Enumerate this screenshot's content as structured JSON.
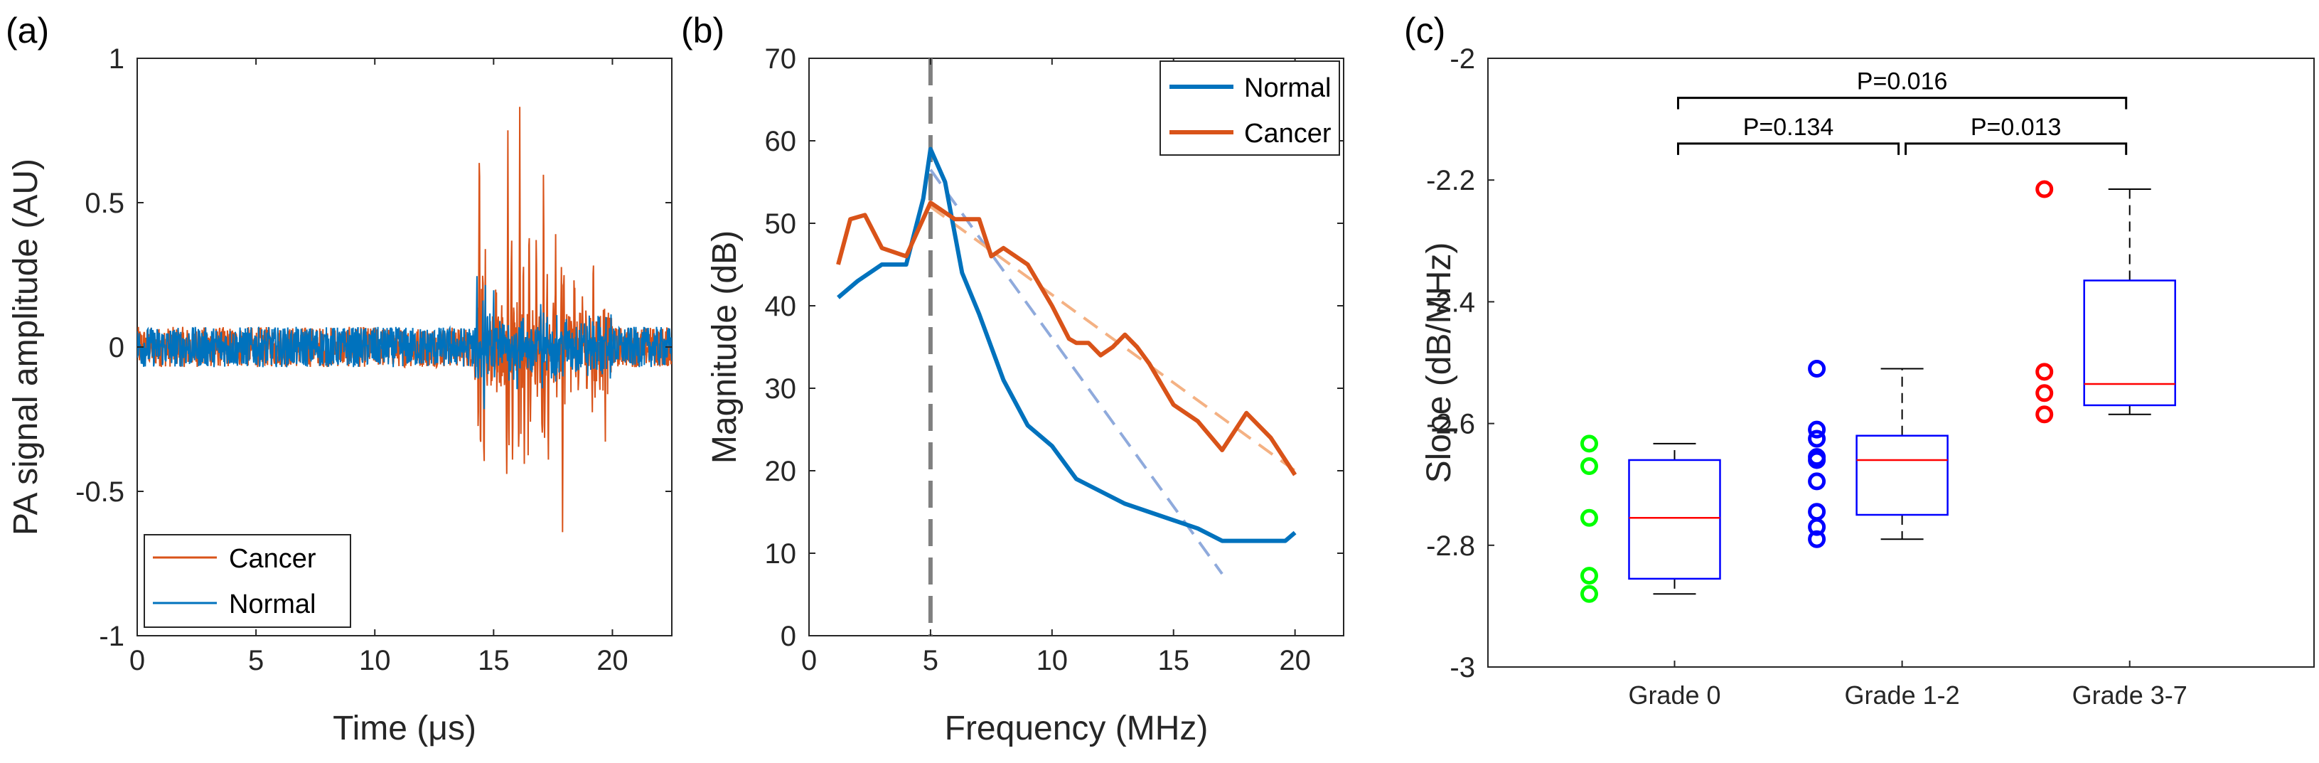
{
  "colors": {
    "normal": "#0072BD",
    "cancer": "#D95319",
    "normal_fit": "#8FAADC",
    "cancer_fit": "#F4B183",
    "grade0": "#00FF00",
    "grade12": "#0000FF",
    "grade37": "#FF0000",
    "box": "#0000FF",
    "median": "#FF0000",
    "vline": "#808080"
  },
  "chart_data": [
    {
      "id": "a",
      "type": "line",
      "panel_label": "(a)",
      "xlabel": "Time (μs)",
      "ylabel": "PA signal amplitude (AU)",
      "xlim": [
        0,
        22.5
      ],
      "ylim": [
        -1,
        1
      ],
      "xticks": [
        0,
        5,
        10,
        15,
        20
      ],
      "yticks": [
        -1,
        -0.5,
        0,
        0.5,
        1
      ],
      "ytick_labels": [
        "-1",
        "-0.5",
        "0",
        "0.5",
        "1"
      ],
      "legend": [
        "Cancer",
        "Normal"
      ],
      "series": [
        {
          "name": "Cancer",
          "color_key": "cancer",
          "noise_amp": 0.07,
          "bursts": [
            {
              "t": 14.4,
              "amp": 0.75,
              "sign": 1
            },
            {
              "t": 14.6,
              "amp": -0.37,
              "sign": 1
            },
            {
              "t": 15.1,
              "amp": 0.25,
              "sign": 1
            },
            {
              "t": 15.6,
              "amp": 0.63,
              "sign": 1
            },
            {
              "t": 15.8,
              "amp": -0.45,
              "sign": 1
            },
            {
              "t": 16.1,
              "amp": 0.68,
              "sign": 1
            },
            {
              "t": 16.3,
              "amp": -0.4,
              "sign": 1
            },
            {
              "t": 16.5,
              "amp": 0.45,
              "sign": 1
            },
            {
              "t": 16.8,
              "amp": 0.33,
              "sign": 1
            },
            {
              "t": 17.1,
              "amp": 0.5,
              "sign": 1
            },
            {
              "t": 17.3,
              "amp": -0.3,
              "sign": 1
            },
            {
              "t": 17.6,
              "amp": 0.27,
              "sign": 1
            },
            {
              "t": 17.9,
              "amp": -0.53,
              "sign": 1
            },
            {
              "t": 18.4,
              "amp": 0.25,
              "sign": 1
            },
            {
              "t": 19.2,
              "amp": 0.2,
              "sign": 1
            },
            {
              "t": 19.7,
              "amp": -0.25,
              "sign": 1
            }
          ]
        },
        {
          "name": "Normal",
          "color_key": "normal",
          "noise_amp": 0.07,
          "bursts": [
            {
              "t": 14.3,
              "amp": 0.22,
              "sign": 1
            },
            {
              "t": 14.6,
              "amp": -0.22,
              "sign": 1
            },
            {
              "t": 15.0,
              "amp": 0.15,
              "sign": 1
            },
            {
              "t": 16.0,
              "amp": -0.15,
              "sign": 1
            },
            {
              "t": 17.0,
              "amp": 0.12,
              "sign": 1
            }
          ]
        }
      ]
    },
    {
      "id": "b",
      "type": "line",
      "panel_label": "(b)",
      "xlabel": "Frequency (MHz)",
      "ylabel": "Magnitude (dB)",
      "xlim": [
        0,
        22
      ],
      "ylim": [
        0,
        70
      ],
      "xticks": [
        0,
        5,
        10,
        15,
        20
      ],
      "yticks": [
        0,
        10,
        20,
        30,
        40,
        50,
        60,
        70
      ],
      "vline_x": 5,
      "legend": [
        "Normal",
        "Cancer"
      ],
      "series": [
        {
          "name": "Normal",
          "color_key": "normal",
          "x": [
            1.2,
            2,
            3,
            4,
            4.7,
            5,
            5.6,
            6.3,
            7,
            8,
            9,
            10,
            11,
            12,
            13,
            14,
            15,
            16,
            17,
            18,
            19,
            19.6,
            20
          ],
          "y": [
            41,
            43,
            45,
            45,
            53,
            59,
            55,
            44,
            39,
            31,
            25.5,
            23,
            19,
            17.5,
            16,
            15,
            14,
            13,
            11.5,
            11.5,
            11.5,
            11.5,
            12.5
          ]
        },
        {
          "name": "Cancer",
          "color_key": "cancer",
          "x": [
            1.2,
            1.7,
            2.3,
            3,
            4,
            5,
            5.5,
            6,
            7,
            7.5,
            8,
            9,
            10,
            10.7,
            11,
            11.5,
            12,
            12.5,
            13,
            13.5,
            14,
            15,
            16,
            17,
            18,
            19,
            20
          ],
          "y": [
            45,
            50.5,
            51,
            47,
            46,
            52.5,
            51.5,
            50.5,
            50.5,
            46,
            47,
            45,
            40,
            36,
            35.5,
            35.5,
            34,
            35,
            36.5,
            35,
            33,
            28,
            26,
            22.5,
            27,
            24,
            19.5
          ]
        }
      ],
      "fits": [
        {
          "name": "Normal fit",
          "color_key": "normal_fit",
          "x": [
            5,
            17
          ],
          "y": [
            56.5,
            7.5
          ]
        },
        {
          "name": "Cancer fit",
          "color_key": "cancer_fit",
          "x": [
            5,
            20
          ],
          "y": [
            52,
            20
          ]
        }
      ]
    },
    {
      "id": "c",
      "type": "box",
      "panel_label": "(c)",
      "ylabel": "Slope (dB/MHz)",
      "ylim": [
        -3,
        -2
      ],
      "yticks": [
        -3,
        -2.8,
        -2.6,
        -2.4,
        -2.2,
        -2
      ],
      "ytick_labels": [
        "-3",
        "-2.8",
        "-2.6",
        "-2.4",
        "-2.2",
        "-2"
      ],
      "categories": [
        "Grade 0",
        "Grade 1-2",
        "Grade 3-7"
      ],
      "boxes": [
        {
          "name": "Grade 0",
          "color_key": "grade0",
          "q1": -2.855,
          "median": -2.755,
          "q3": -2.66,
          "whisker_low": -2.88,
          "whisker_high": -2.633,
          "points": [
            -2.633,
            -2.67,
            -2.755,
            -2.85,
            -2.88
          ]
        },
        {
          "name": "Grade 1-2",
          "color_key": "grade12",
          "q1": -2.75,
          "median": -2.66,
          "q3": -2.62,
          "whisker_low": -2.79,
          "whisker_high": -2.51,
          "points": [
            -2.51,
            -2.61,
            -2.625,
            -2.655,
            -2.66,
            -2.695,
            -2.745,
            -2.77,
            -2.79
          ]
        },
        {
          "name": "Grade 3-7",
          "color_key": "grade37",
          "q1": -2.57,
          "median": -2.535,
          "q3": -2.365,
          "whisker_low": -2.585,
          "whisker_high": -2.215,
          "points": [
            -2.215,
            -2.515,
            -2.55,
            -2.585
          ]
        }
      ],
      "comparisons": [
        {
          "from": 0,
          "to": 2,
          "label": "P=0.016",
          "y": -2.065
        },
        {
          "from": 0,
          "to": 1,
          "label": "P=0.134",
          "y": -2.14
        },
        {
          "from": 1,
          "to": 2,
          "label": "P=0.013",
          "y": -2.14
        }
      ]
    }
  ]
}
